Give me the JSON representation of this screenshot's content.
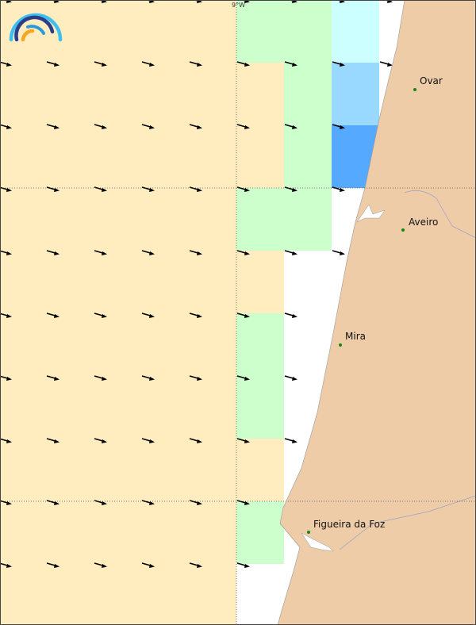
{
  "colors": {
    "land": "#eecca8",
    "sea": "#ffffff",
    "beige": "#ffedc0",
    "green": "#ccffcc",
    "cyan": "#ccffff",
    "lightblue": "#99d9ff",
    "blue": "#55aaff"
  },
  "grid_label": "9°W",
  "cities": [
    {
      "name": "Ovar"
    },
    {
      "name": "Aveiro"
    },
    {
      "name": "Mira"
    },
    {
      "name": "Figueira da Foz"
    }
  ],
  "logo": "wave-arcs-logo"
}
